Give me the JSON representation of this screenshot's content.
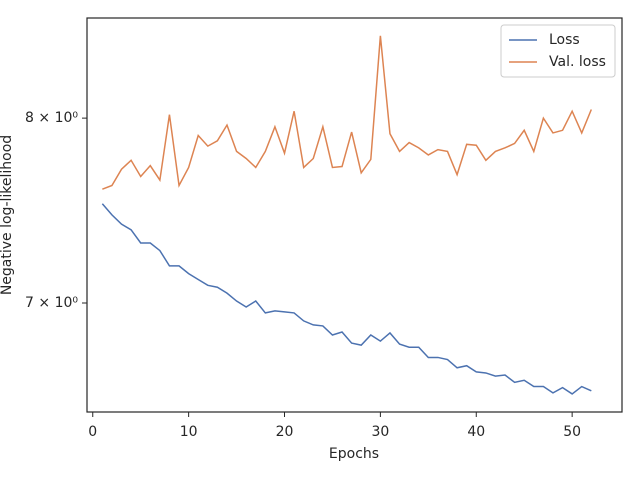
{
  "chart_data": {
    "type": "line",
    "xlabel": "Epochs",
    "ylabel": "Negative log-likelihood",
    "x": [
      1,
      2,
      3,
      4,
      5,
      6,
      7,
      8,
      9,
      10,
      11,
      12,
      13,
      14,
      15,
      16,
      17,
      18,
      19,
      20,
      21,
      22,
      23,
      24,
      25,
      26,
      27,
      28,
      29,
      30,
      31,
      32,
      33,
      34,
      35,
      36,
      37,
      38,
      39,
      40,
      41,
      42,
      43,
      44,
      45,
      46,
      47,
      48,
      49,
      50,
      51,
      52
    ],
    "series": [
      {
        "name": "Loss",
        "color": "#4c72b0",
        "values": [
          7.52,
          7.46,
          7.41,
          7.38,
          7.31,
          7.31,
          7.27,
          7.19,
          7.19,
          7.15,
          7.12,
          7.09,
          7.08,
          7.05,
          7.01,
          6.98,
          7.01,
          6.95,
          6.96,
          6.955,
          6.95,
          6.91,
          6.89,
          6.885,
          6.84,
          6.855,
          6.8,
          6.79,
          6.84,
          6.81,
          6.85,
          6.795,
          6.78,
          6.78,
          6.73,
          6.73,
          6.72,
          6.68,
          6.69,
          6.66,
          6.655,
          6.64,
          6.645,
          6.61,
          6.62,
          6.59,
          6.59,
          6.56,
          6.585,
          6.555,
          6.59,
          6.57
        ]
      },
      {
        "name": "Val. loss",
        "color": "#dd8452",
        "values": [
          7.6,
          7.62,
          7.71,
          7.76,
          7.67,
          7.73,
          7.65,
          8.02,
          7.62,
          7.72,
          7.9,
          7.84,
          7.87,
          7.96,
          7.81,
          7.77,
          7.72,
          7.81,
          7.95,
          7.8,
          8.04,
          7.72,
          7.77,
          7.95,
          7.72,
          7.725,
          7.92,
          7.69,
          7.765,
          8.49,
          7.91,
          7.81,
          7.86,
          7.83,
          7.79,
          7.82,
          7.81,
          7.68,
          7.85,
          7.845,
          7.76,
          7.81,
          7.83,
          7.855,
          7.93,
          7.81,
          8.0,
          7.915,
          7.93,
          8.04,
          7.915,
          8.05
        ]
      }
    ],
    "xlim": [
      -0.6,
      55.2
    ],
    "xticks": [
      0,
      10,
      20,
      30,
      40,
      50
    ],
    "ylim": [
      6.47,
      8.6
    ],
    "log_y": true,
    "yticks": [
      {
        "value": 7,
        "label": "7 × 10⁰"
      },
      {
        "value": 8,
        "label": "8 × 10⁰"
      }
    ],
    "legend": "upper right"
  }
}
